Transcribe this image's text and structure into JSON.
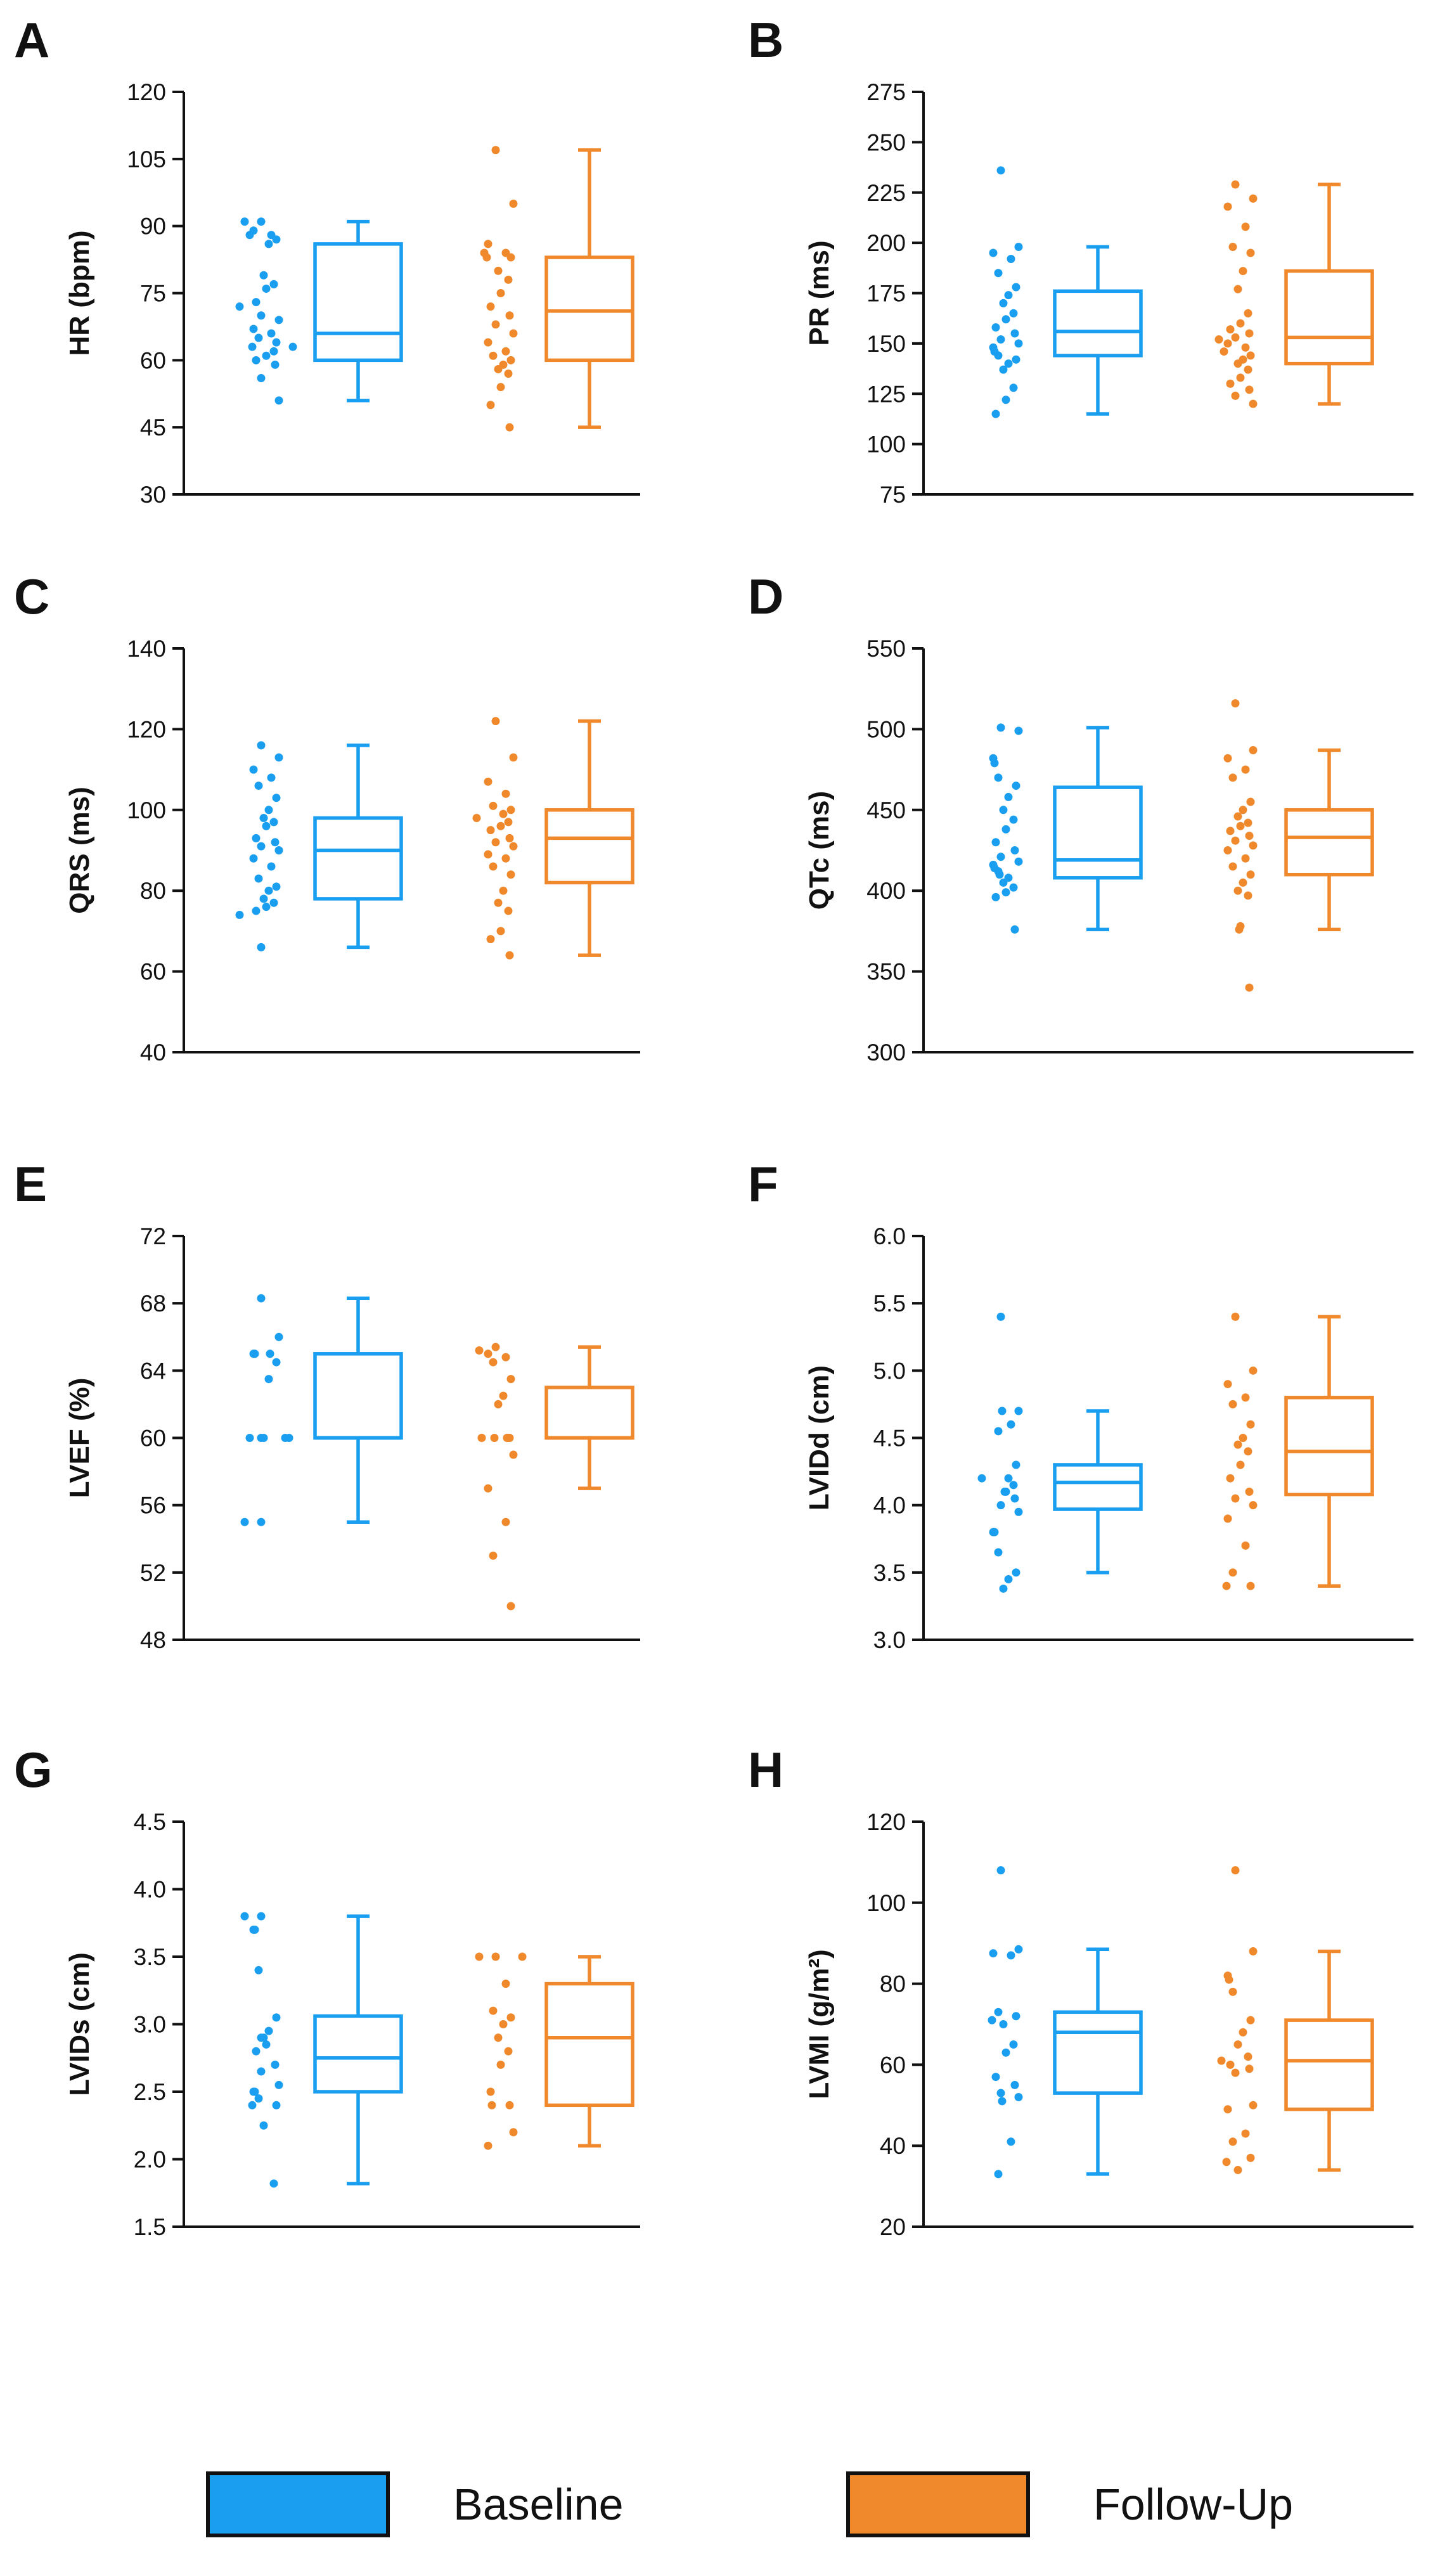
{
  "colors": {
    "baseline": "#1a9ff0",
    "followup": "#f0882c",
    "axis": "#111111"
  },
  "legend": {
    "baseline_label": "Baseline",
    "followup_label": "Follow-Up"
  },
  "chart_data": [
    {
      "type": "box",
      "panel": "A",
      "ylabel": "HR (bpm)",
      "ylim": [
        30,
        120
      ],
      "ticks": [
        30,
        45,
        60,
        75,
        90,
        105,
        120
      ],
      "groups": [
        {
          "name": "Baseline",
          "whisker_low": 51,
          "q1": 60,
          "median": 66,
          "q3": 86,
          "whisker_high": 91,
          "points": [
            91,
            91,
            89,
            88,
            88,
            87,
            86,
            79,
            77,
            76,
            73,
            72,
            70,
            69,
            67,
            66,
            65,
            64,
            63,
            63,
            62,
            61,
            60,
            59,
            56,
            51
          ]
        },
        {
          "name": "Follow-Up",
          "whisker_low": 45,
          "q1": 60,
          "median": 71,
          "q3": 83,
          "whisker_high": 107,
          "points": [
            107,
            95,
            86,
            84,
            84,
            83,
            83,
            80,
            78,
            75,
            72,
            70,
            68,
            66,
            64,
            62,
            61,
            60,
            59,
            58,
            57,
            54,
            50,
            45
          ]
        }
      ]
    },
    {
      "type": "box",
      "panel": "B",
      "ylabel": "PR (ms)",
      "ylim": [
        75,
        275
      ],
      "ticks": [
        75,
        100,
        125,
        150,
        175,
        200,
        225,
        250,
        275
      ],
      "groups": [
        {
          "name": "Baseline",
          "whisker_low": 115,
          "q1": 144,
          "median": 156,
          "q3": 176,
          "whisker_high": 198,
          "points": [
            236,
            198,
            195,
            192,
            185,
            178,
            174,
            170,
            165,
            162,
            158,
            155,
            152,
            150,
            148,
            146,
            144,
            142,
            140,
            137,
            128,
            122,
            115
          ]
        },
        {
          "name": "Follow-Up",
          "whisker_low": 120,
          "q1": 140,
          "median": 153,
          "q3": 186,
          "whisker_high": 229,
          "points": [
            229,
            222,
            218,
            208,
            198,
            195,
            186,
            177,
            165,
            160,
            157,
            155,
            153,
            152,
            150,
            148,
            146,
            144,
            142,
            140,
            137,
            133,
            130,
            127,
            124,
            120
          ]
        }
      ]
    },
    {
      "type": "box",
      "panel": "C",
      "ylabel": "QRS (ms)",
      "ylim": [
        40,
        140
      ],
      "ticks": [
        40,
        60,
        80,
        100,
        120,
        140
      ],
      "groups": [
        {
          "name": "Baseline",
          "whisker_low": 66,
          "q1": 78,
          "median": 90,
          "q3": 98,
          "whisker_high": 116,
          "points": [
            116,
            113,
            110,
            108,
            106,
            103,
            100,
            98,
            97,
            96,
            93,
            92,
            91,
            90,
            88,
            86,
            83,
            81,
            80,
            78,
            77,
            76,
            75,
            74,
            66
          ]
        },
        {
          "name": "Follow-Up",
          "whisker_low": 64,
          "q1": 82,
          "median": 93,
          "q3": 100,
          "whisker_high": 122,
          "points": [
            122,
            113,
            107,
            104,
            101,
            100,
            99,
            98,
            97,
            96,
            95,
            93,
            92,
            91,
            89,
            88,
            86,
            84,
            80,
            77,
            75,
            70,
            68,
            64
          ]
        }
      ]
    },
    {
      "type": "box",
      "panel": "D",
      "ylabel": "QTc (ms)",
      "ylim": [
        300,
        550
      ],
      "ticks": [
        300,
        350,
        400,
        450,
        500,
        550
      ],
      "groups": [
        {
          "name": "Baseline",
          "whisker_low": 376,
          "q1": 408,
          "median": 419,
          "q3": 464,
          "whisker_high": 501,
          "points": [
            501,
            499,
            482,
            479,
            470,
            465,
            458,
            450,
            444,
            438,
            430,
            425,
            421,
            418,
            416,
            414,
            412,
            410,
            408,
            405,
            402,
            399,
            396,
            376
          ]
        },
        {
          "name": "Follow-Up",
          "whisker_low": 376,
          "q1": 410,
          "median": 433,
          "q3": 450,
          "whisker_high": 487,
          "points": [
            516,
            487,
            482,
            475,
            470,
            455,
            450,
            446,
            442,
            440,
            437,
            434,
            431,
            428,
            425,
            420,
            415,
            410,
            405,
            400,
            397,
            378,
            376,
            340
          ]
        }
      ]
    },
    {
      "type": "box",
      "panel": "E",
      "ylabel": "LVEF (%)",
      "ylim": [
        48,
        72
      ],
      "ticks": [
        48,
        52,
        56,
        60,
        64,
        68,
        72
      ],
      "groups": [
        {
          "name": "Baseline",
          "whisker_low": 55,
          "q1": 60,
          "median": 60,
          "q3": 65,
          "whisker_high": 68.3,
          "points": [
            68.3,
            66,
            65,
            65,
            65,
            64.5,
            63.5,
            60,
            60,
            60,
            60,
            60,
            55,
            55
          ]
        },
        {
          "name": "Follow-Up",
          "whisker_low": 57,
          "q1": 60,
          "median": 60,
          "q3": 63,
          "whisker_high": 65.4,
          "points": [
            65.4,
            65.2,
            65,
            64.8,
            64.5,
            63.5,
            62.5,
            62,
            60,
            60,
            60,
            60,
            60,
            59,
            57,
            55,
            53,
            50
          ]
        }
      ]
    },
    {
      "type": "box",
      "panel": "F",
      "ylabel": "LVIDd (cm)",
      "ylim": [
        3.0,
        6.0
      ],
      "ticks": [
        "3.0",
        "3.5",
        "4.0",
        "4.5",
        "5.0",
        "5.5",
        "6.0"
      ],
      "groups": [
        {
          "name": "Baseline",
          "whisker_low": 3.5,
          "q1": 3.97,
          "median": 4.17,
          "q3": 4.3,
          "whisker_high": 4.7,
          "points": [
            5.4,
            4.7,
            4.7,
            4.6,
            4.55,
            4.3,
            4.2,
            4.2,
            4.15,
            4.1,
            4.1,
            4.05,
            4.0,
            3.95,
            3.8,
            3.8,
            3.65,
            3.5,
            3.45,
            3.38
          ]
        },
        {
          "name": "Follow-Up",
          "whisker_low": 3.4,
          "q1": 4.08,
          "median": 4.4,
          "q3": 4.8,
          "whisker_high": 5.4,
          "points": [
            5.4,
            5.0,
            4.9,
            4.8,
            4.75,
            4.6,
            4.5,
            4.45,
            4.4,
            4.3,
            4.2,
            4.1,
            4.05,
            4.0,
            3.9,
            3.7,
            3.5,
            3.4,
            3.4
          ]
        }
      ]
    },
    {
      "type": "box",
      "panel": "G",
      "ylabel": "LVIDs (cm)",
      "ylim": [
        1.5,
        4.5
      ],
      "ticks": [
        "1.5",
        "2.0",
        "2.5",
        "3.0",
        "3.5",
        "4.0",
        "4.5"
      ],
      "groups": [
        {
          "name": "Baseline",
          "whisker_low": 1.82,
          "q1": 2.5,
          "median": 2.75,
          "q3": 3.06,
          "whisker_high": 3.8,
          "points": [
            3.8,
            3.8,
            3.7,
            3.7,
            3.4,
            3.05,
            2.95,
            2.9,
            2.9,
            2.85,
            2.8,
            2.7,
            2.65,
            2.55,
            2.5,
            2.5,
            2.45,
            2.4,
            2.4,
            2.25,
            1.82
          ]
        },
        {
          "name": "Follow-Up",
          "whisker_low": 2.1,
          "q1": 2.4,
          "median": 2.9,
          "q3": 3.3,
          "whisker_high": 3.5,
          "points": [
            3.5,
            3.5,
            3.5,
            3.3,
            3.1,
            3.05,
            3.0,
            2.9,
            2.8,
            2.7,
            2.5,
            2.4,
            2.4,
            2.2,
            2.1
          ]
        }
      ]
    },
    {
      "type": "box",
      "panel": "H",
      "ylabel": "LVMI (g/m²)",
      "ylim": [
        20,
        120
      ],
      "ticks": [
        20,
        40,
        60,
        80,
        100,
        120
      ],
      "groups": [
        {
          "name": "Baseline",
          "whisker_low": 33,
          "q1": 53,
          "median": 68,
          "q3": 73,
          "whisker_high": 88.5,
          "points": [
            108,
            88.5,
            87.5,
            87,
            73,
            72,
            71,
            70,
            65,
            63,
            57,
            55,
            53,
            52,
            51,
            41,
            33
          ]
        },
        {
          "name": "Follow-Up",
          "whisker_low": 34,
          "q1": 49,
          "median": 61,
          "q3": 71,
          "whisker_high": 88,
          "points": [
            108,
            88,
            82,
            81,
            78,
            71,
            68,
            65,
            62,
            61,
            60,
            59,
            58,
            50,
            49,
            43,
            41,
            37,
            36,
            34
          ]
        }
      ]
    }
  ]
}
